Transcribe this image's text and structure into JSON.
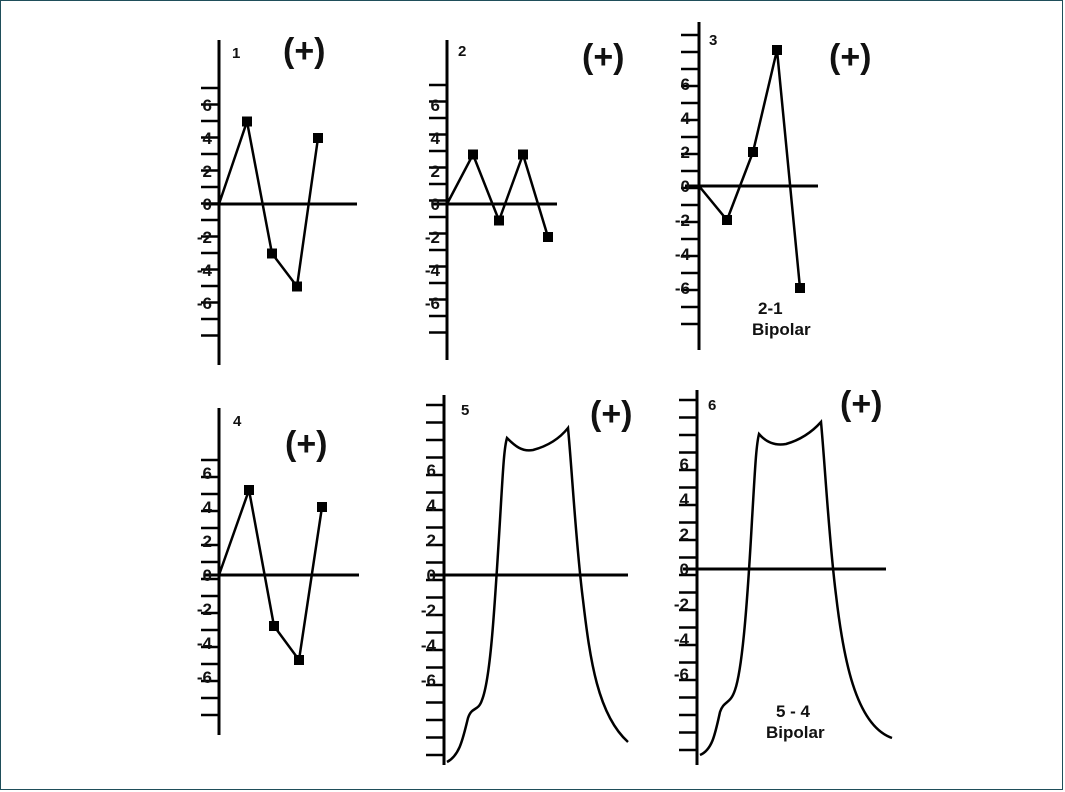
{
  "panels": [
    {
      "number": "1",
      "sign": "(+)",
      "tick_labels": [
        "6",
        "4",
        "2",
        "0",
        "-2",
        "-4",
        "-6"
      ],
      "note": []
    },
    {
      "number": "2",
      "sign": "(+)",
      "tick_labels": [
        "6",
        "4",
        "2",
        "0",
        "-2",
        "-4",
        "-6"
      ],
      "note": []
    },
    {
      "number": "3",
      "sign": "(+)",
      "tick_labels": [
        "6",
        "4",
        "2",
        "0",
        "-2",
        "-4",
        "-6"
      ],
      "note": [
        "2-1",
        "Bipolar"
      ]
    },
    {
      "number": "4",
      "sign": "(+)",
      "tick_labels": [
        "6",
        "4",
        "2",
        "0",
        "-2",
        "-4",
        "-6"
      ],
      "note": []
    },
    {
      "number": "5",
      "sign": "(+)",
      "tick_labels": [
        "6",
        "4",
        "2",
        "0",
        "-2",
        "-4",
        "-6"
      ],
      "note": []
    },
    {
      "number": "6",
      "sign": "(+)",
      "tick_labels": [
        "6",
        "4",
        "2",
        "0",
        "-2",
        "-4",
        "-6"
      ],
      "note": [
        "5 - 4",
        "Bipolar"
      ]
    }
  ],
  "chart_data": [
    {
      "type": "line",
      "panel": "1",
      "y": [
        0,
        5,
        -3,
        -5,
        4
      ],
      "marked_points": [
        [
          1,
          5
        ],
        [
          2,
          -3
        ],
        [
          3,
          -5
        ],
        [
          4,
          4
        ]
      ]
    },
    {
      "type": "line",
      "panel": "2",
      "y": [
        0,
        3,
        -1,
        3,
        -2
      ],
      "marked_points": [
        [
          1,
          3
        ],
        [
          2,
          -1
        ],
        [
          3,
          3
        ],
        [
          4,
          -2
        ]
      ]
    },
    {
      "type": "line",
      "panel": "3",
      "y": [
        0,
        -2,
        2,
        8,
        -6
      ],
      "marked_points": [
        [
          1,
          -2
        ],
        [
          2,
          2
        ],
        [
          3,
          8
        ],
        [
          4,
          -6
        ]
      ]
    },
    {
      "type": "line",
      "panel": "4",
      "y": [
        0,
        5,
        -3,
        -5,
        4
      ],
      "marked_points": [
        [
          1,
          5
        ],
        [
          2,
          -3
        ],
        [
          3,
          -5
        ],
        [
          4,
          4
        ]
      ]
    },
    {
      "type": "line",
      "panel": "5",
      "shape": "plateau-wave"
    },
    {
      "type": "line",
      "panel": "6",
      "shape": "plateau-wave"
    }
  ]
}
